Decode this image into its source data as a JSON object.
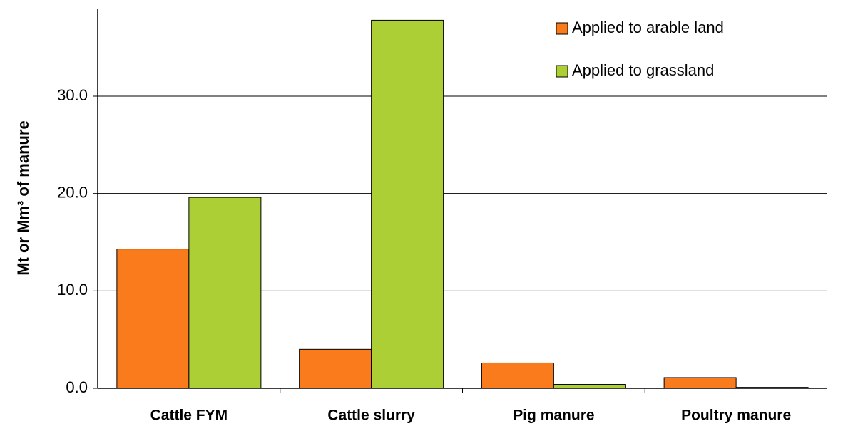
{
  "chart_data": {
    "type": "bar",
    "y_label": "Mt or Mm³ of manure",
    "categories": [
      "Cattle FYM",
      "Cattle slurry",
      "Pig manure",
      "Poultry manure"
    ],
    "series": [
      {
        "name": "Applied to arable land",
        "color": "#f97b1c",
        "values": [
          14.3,
          4.0,
          2.6,
          1.1
        ]
      },
      {
        "name": "Applied to grassland",
        "color": "#abcf35",
        "values": [
          19.6,
          37.8,
          0.4,
          0.1
        ]
      }
    ],
    "ylim": [
      0,
      39
    ],
    "yticks": [
      {
        "value": 0,
        "label": "0.0"
      },
      {
        "value": 10,
        "label": "10.0"
      },
      {
        "value": 20,
        "label": "20.0"
      },
      {
        "value": 30,
        "label": "30.0"
      }
    ],
    "grid": true,
    "legend": "top-right"
  }
}
